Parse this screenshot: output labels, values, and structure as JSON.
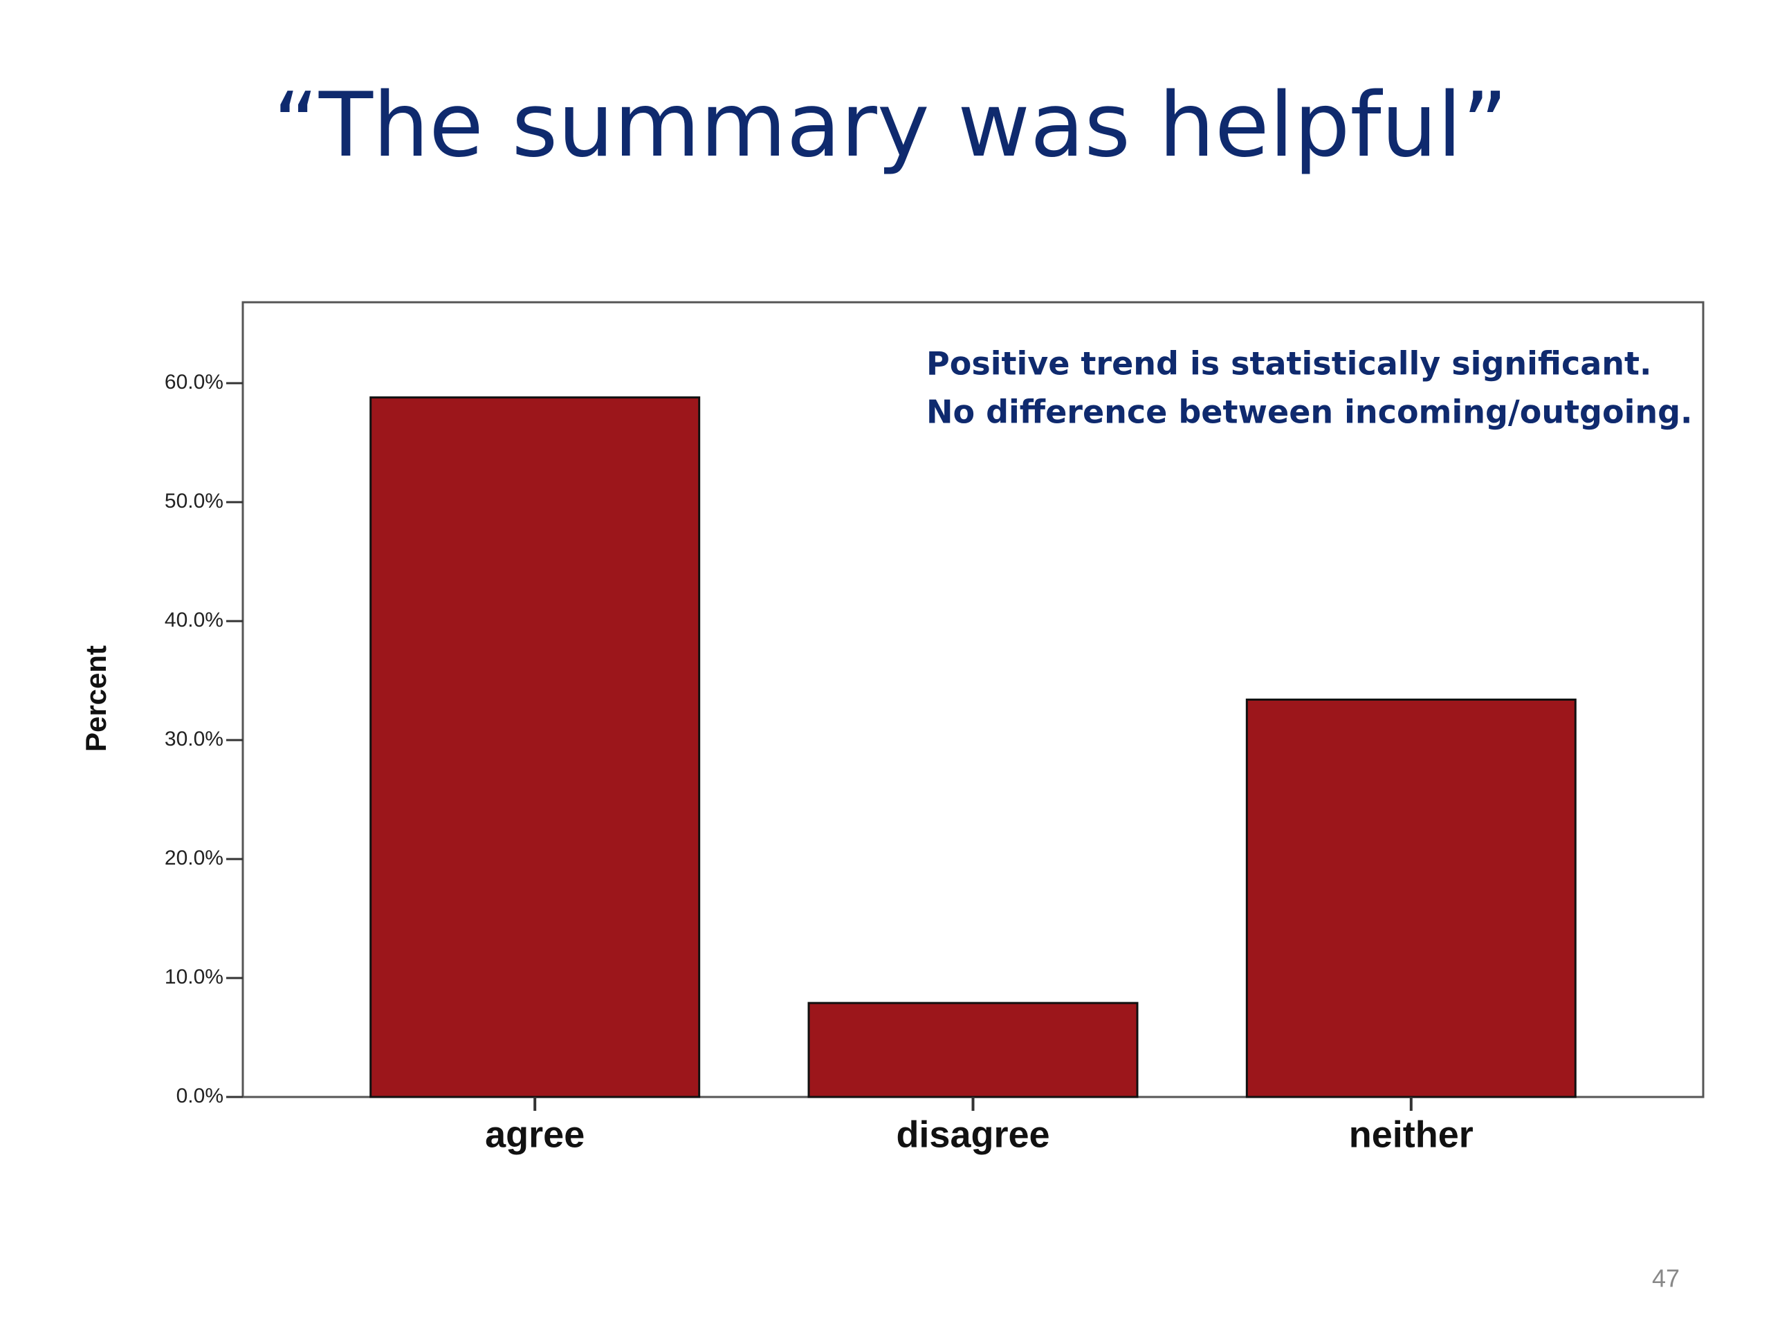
{
  "chart_data": {
    "type": "bar",
    "title": "“The summary was helpful”",
    "annotations": [
      "Positive trend is statistically significant.",
      "No difference between incoming/outgoing."
    ],
    "y_label": "Percent",
    "categories": [
      "agree",
      "disagree",
      "neither"
    ],
    "values": [
      58.8,
      7.9,
      33.4
    ],
    "color": "#9c161b",
    "ylim": [
      0,
      66.8
    ],
    "yticks": [
      {
        "value": 0,
        "label": "0.0%"
      },
      {
        "value": 10,
        "label": "10.0%"
      },
      {
        "value": 20,
        "label": "20.0%"
      },
      {
        "value": 30,
        "label": "30.0%"
      },
      {
        "value": 40,
        "label": "40.0%"
      },
      {
        "value": 50,
        "label": "50.0%"
      },
      {
        "value": 60,
        "label": "60.0%"
      }
    ],
    "page_number": "47"
  }
}
